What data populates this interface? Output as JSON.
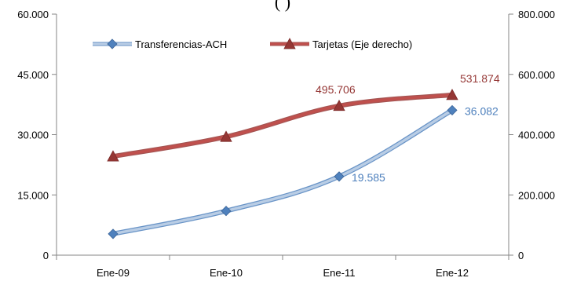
{
  "chart_data": {
    "type": "line",
    "title": "",
    "top_text": "(                                         )",
    "categories": [
      "Ene-09",
      "Ene-10",
      "Ene-11",
      "Ene-12"
    ],
    "y_left": {
      "ticks": [
        "0",
        "15.000",
        "30.000",
        "45.000",
        "60.000"
      ],
      "ylim": [
        0,
        60000
      ]
    },
    "y_right": {
      "ticks": [
        "0",
        "200.000",
        "400.000",
        "600.000",
        "800.000"
      ],
      "ylim": [
        0,
        800000
      ]
    },
    "series": [
      {
        "name": "Transferencias-ACH",
        "axis": "left",
        "values": [
          5300,
          11000,
          19585,
          36082
        ],
        "data_labels": [
          "",
          "",
          "19.585",
          "36.082"
        ],
        "color": "#4f81bd",
        "line_color": "#b9cde5",
        "marker": "diamond"
      },
      {
        "name": "Tarjetas (Eje derecho)",
        "axis": "right",
        "values": [
          328000,
          393000,
          495706,
          531874
        ],
        "data_labels": [
          "",
          "",
          "495.706",
          "531.874"
        ],
        "color": "#953735",
        "line_color": "#c0504d",
        "marker": "triangle"
      }
    ],
    "legend_position": "top-left",
    "grid": false
  }
}
